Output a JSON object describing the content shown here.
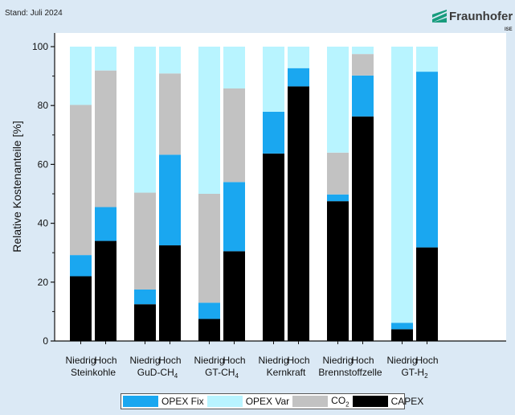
{
  "header": {
    "stand": "Stand: Juli 2024",
    "logo_text": "Fraunhofer",
    "logo_sub": "ISE"
  },
  "chart_data": {
    "type": "bar",
    "stacked": true,
    "ylabel": "Relative Kostenanteile [%]",
    "ylim": [
      0,
      100
    ],
    "yticks": [
      0,
      20,
      40,
      60,
      80,
      100
    ],
    "grid": false,
    "legend_position": "bottom",
    "groups": [
      {
        "name": "Steinkohle",
        "name_sub": ""
      },
      {
        "name": "GuD-CH",
        "name_sub": "4"
      },
      {
        "name": "GT-CH",
        "name_sub": "4"
      },
      {
        "name": "Kernkraft",
        "name_sub": ""
      },
      {
        "name": "Brennstoffzelle",
        "name_sub": ""
      },
      {
        "name": "GT-H",
        "name_sub": "2"
      }
    ],
    "case_labels": [
      "Niedrig",
      "Hoch"
    ],
    "categories": [
      "Steinkohle Niedrig",
      "Steinkohle Hoch",
      "GuD-CH4 Niedrig",
      "GuD-CH4 Hoch",
      "GT-CH4 Niedrig",
      "GT-CH4 Hoch",
      "Kernkraft Niedrig",
      "Kernkraft Hoch",
      "Brennstoffzelle Niedrig",
      "Brennstoffzelle Hoch",
      "GT-H2 Niedrig",
      "GT-H2 Hoch"
    ],
    "series": [
      {
        "name": "CAPEX",
        "color": "#000000",
        "values": [
          22,
          34,
          12.5,
          32.5,
          7.5,
          30.5,
          63.7,
          86.5,
          47.5,
          76.3,
          4,
          31.8
        ]
      },
      {
        "name": "OPEX Fix",
        "color": "#1aa7f0",
        "values": [
          7.2,
          11.5,
          5,
          30.8,
          5.5,
          23.5,
          14.2,
          6.2,
          2.3,
          13.9,
          2.2,
          59.7
        ]
      },
      {
        "name": "CO2",
        "color": "#c2c2c2",
        "values": [
          51,
          46.4,
          32.9,
          27.6,
          37,
          31.8,
          0,
          0,
          14.2,
          7.3,
          0,
          0
        ]
      },
      {
        "name": "OPEX Var",
        "color": "#b8f4ff",
        "values": [
          19.8,
          8.1,
          49.6,
          9.1,
          50,
          14.2,
          22.1,
          7.3,
          36,
          2.5,
          93.8,
          8.5
        ]
      }
    ],
    "legend": [
      {
        "label": "OPEX Fix",
        "sub": "",
        "color": "#1aa7f0"
      },
      {
        "label": "OPEX Var",
        "sub": "",
        "color": "#b8f4ff"
      },
      {
        "label": "CO",
        "sub": "2",
        "color": "#c2c2c2"
      },
      {
        "label": "CAPEX",
        "sub": "",
        "color": "#000000"
      }
    ]
  }
}
